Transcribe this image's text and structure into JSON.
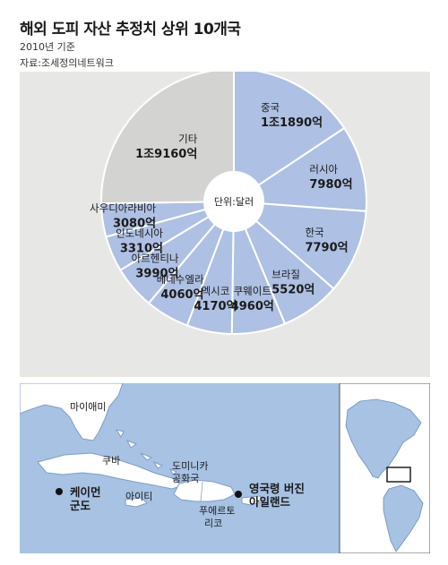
{
  "header": {
    "title": "해외 도피 자산 추정치 상위 10개국",
    "subtitle": "2010년 기준",
    "source": "자료:조세정의네트워크"
  },
  "chart_data": {
    "type": "pie",
    "title": "해외 도피 자산 추정치 상위 10개국",
    "unit_label": "단위:달러",
    "slices": [
      {
        "name": "중국",
        "value_text": "1조1890억",
        "value": 11890
      },
      {
        "name": "러시아",
        "value_text": "7980억",
        "value": 7980
      },
      {
        "name": "한국",
        "value_text": "7790억",
        "value": 7790
      },
      {
        "name": "브라질",
        "value_text": "5520억",
        "value": 5520
      },
      {
        "name": "쿠웨이트",
        "value_text": "4960억",
        "value": 4960
      },
      {
        "name": "멕시코",
        "value_text": "4170억",
        "value": 4170
      },
      {
        "name": "베네수엘라",
        "value_text": "4060억",
        "value": 4060
      },
      {
        "name": "아르헨티나",
        "value_text": "3990억",
        "value": 3990
      },
      {
        "name": "인도네시아",
        "value_text": "3310억",
        "value": 3310
      },
      {
        "name": "사우디아라비아",
        "value_text": "3080억",
        "value": 3080
      },
      {
        "name": "기타",
        "value_text": "1조9160억",
        "value": 19160
      }
    ],
    "colors": {
      "countries": "#aec0e3",
      "other": "#d3d3d2",
      "stroke": "#ffffff"
    }
  },
  "map": {
    "labels": {
      "miami": "마이애미",
      "cuba": "쿠바",
      "haiti": "아이티",
      "dominican": "도미니카 공화국",
      "puertorico": "푸에르토 리코",
      "cayman": "케이먼 군도",
      "bvi": "영국령 버진 아일랜드"
    },
    "colors": {
      "sea": "#a7c2e3",
      "land": "#ffffff",
      "line": "#6f8fbf"
    }
  }
}
